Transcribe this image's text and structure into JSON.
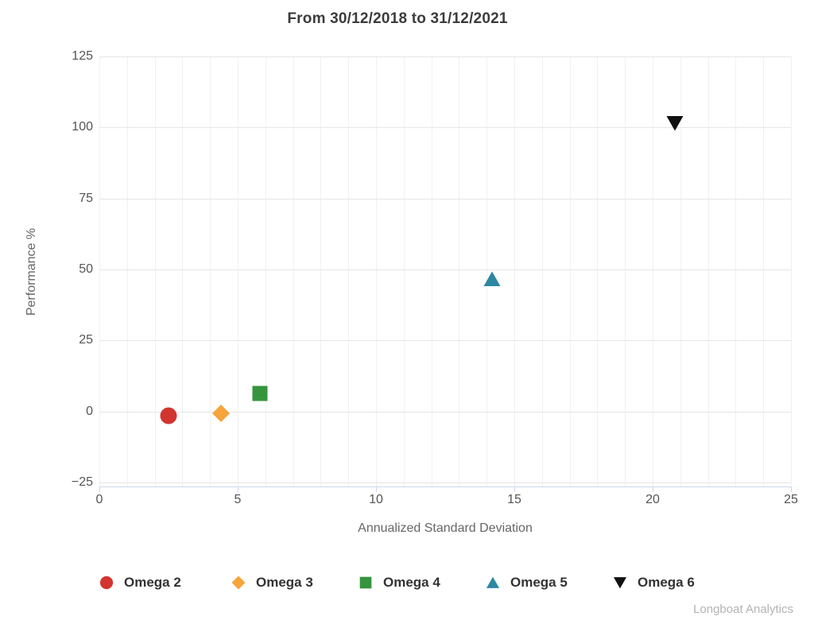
{
  "title": "From 30/12/2018 to 31/12/2021",
  "watermark": "Longboat Analytics",
  "chart_data": {
    "type": "scatter",
    "title": "From 30/12/2018 to 31/12/2021",
    "xlabel": "Annualized Standard Deviation",
    "ylabel": "Performance %",
    "xlim": [
      0,
      25
    ],
    "ylim": [
      -25,
      125
    ],
    "x_ticks": [
      0,
      5,
      10,
      15,
      20,
      25
    ],
    "y_ticks": [
      -25,
      0,
      25,
      50,
      75,
      100,
      125
    ],
    "x_minor_grid_step": 1,
    "grid": true,
    "legend_position": "bottom",
    "series": [
      {
        "name": "Omega 2",
        "marker": "circle",
        "color": "#d2352f",
        "points": [
          [
            2.5,
            -1.5
          ]
        ]
      },
      {
        "name": "Omega 3",
        "marker": "diamond",
        "color": "#f6a43b",
        "points": [
          [
            4.4,
            -0.7
          ]
        ]
      },
      {
        "name": "Omega 4",
        "marker": "square",
        "color": "#36953c",
        "points": [
          [
            5.8,
            6.3
          ]
        ]
      },
      {
        "name": "Omega 5",
        "marker": "triangle-up",
        "color": "#2d87a3",
        "points": [
          [
            14.2,
            46.6
          ]
        ]
      },
      {
        "name": "Omega 6",
        "marker": "triangle-down",
        "color": "#111111",
        "points": [
          [
            20.8,
            101.6
          ]
        ]
      }
    ],
    "colors": {
      "axis_line": "#ccd6eb",
      "grid_major": "#e6e6e6",
      "grid_minor": "#f1f1f1",
      "title_text": "#3c3c3c",
      "tick_text": "#555555",
      "axis_title_text": "#666666",
      "legend_text": "#333333",
      "watermark_text": "#b3b3b3"
    }
  }
}
